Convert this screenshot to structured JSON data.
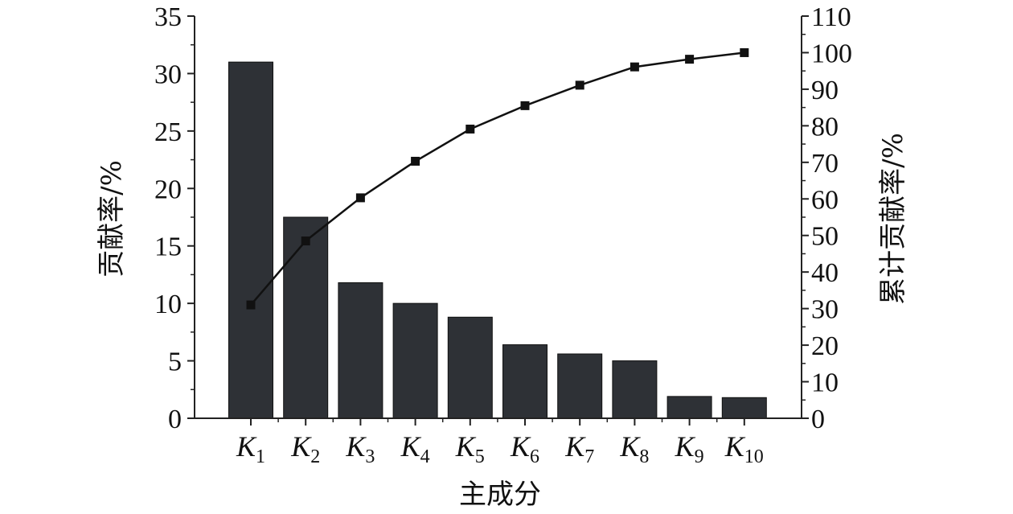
{
  "chart_data": {
    "type": "bar",
    "categories": [
      {
        "main": "K",
        "sub": "1"
      },
      {
        "main": "K",
        "sub": "2"
      },
      {
        "main": "K",
        "sub": "3"
      },
      {
        "main": "K",
        "sub": "4"
      },
      {
        "main": "K",
        "sub": "5"
      },
      {
        "main": "K",
        "sub": "6"
      },
      {
        "main": "K",
        "sub": "7"
      },
      {
        "main": "K",
        "sub": "8"
      },
      {
        "main": "K",
        "sub": "9"
      },
      {
        "main": "K",
        "sub": "10"
      }
    ],
    "series": [
      {
        "type": "bar",
        "axis": "left",
        "values": [
          31.0,
          17.5,
          11.8,
          10.0,
          8.8,
          6.4,
          5.6,
          5.0,
          1.9,
          1.8
        ],
        "color": "#2e3136"
      },
      {
        "type": "line",
        "axis": "right",
        "marker": "square",
        "values": [
          31.0,
          48.5,
          60.3,
          70.3,
          79.1,
          85.5,
          91.1,
          96.1,
          98.2,
          100.0
        ],
        "color": "#111111"
      }
    ],
    "xlabel": "主成分",
    "ylabel_left": "贡献率/%",
    "ylabel_right": "累计贡献率/%",
    "ylim_left": [
      0,
      35
    ],
    "ylim_right": [
      0,
      110
    ],
    "yticks_left": [
      0,
      5,
      10,
      15,
      20,
      25,
      30,
      35
    ],
    "yticks_right": [
      0,
      10,
      20,
      30,
      40,
      50,
      60,
      70,
      80,
      90,
      100,
      110
    ],
    "grid": false,
    "legend": "none"
  }
}
